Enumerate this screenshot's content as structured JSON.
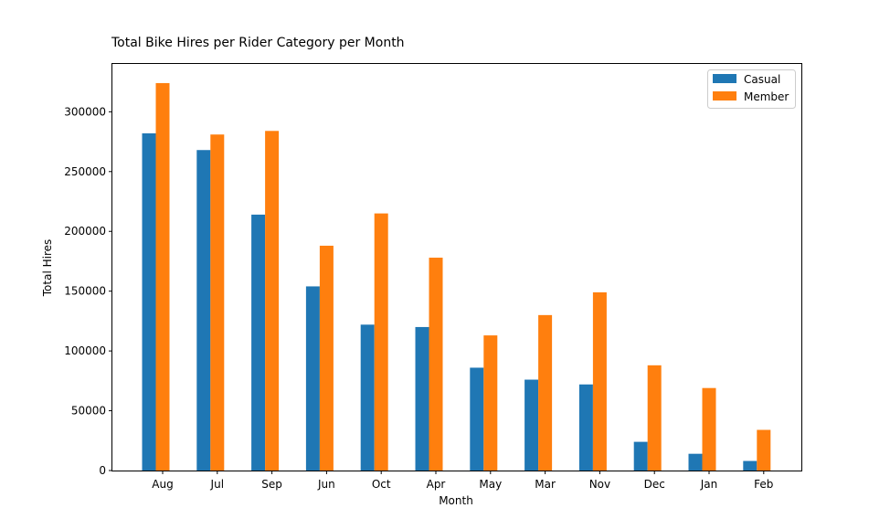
{
  "chart_data": {
    "type": "bar",
    "title": "Total Bike Hires per Rider Category per Month",
    "xlabel": "Month",
    "ylabel": "Total Hires",
    "categories": [
      "Aug",
      "Jul",
      "Sep",
      "Jun",
      "Oct",
      "Apr",
      "May",
      "Mar",
      "Nov",
      "Dec",
      "Jan",
      "Feb"
    ],
    "series": [
      {
        "name": "Casual",
        "color": "#1f77b4",
        "values": [
          282000,
          268000,
          214000,
          154000,
          122000,
          120000,
          86000,
          76000,
          72000,
          24000,
          14000,
          8000
        ]
      },
      {
        "name": "Member",
        "color": "#ff7f0e",
        "values": [
          324000,
          281000,
          284000,
          188000,
          215000,
          178000,
          113000,
          130000,
          149000,
          88000,
          69000,
          34000
        ]
      }
    ],
    "ylim": [
      0,
      340000
    ],
    "yticks": [
      "0",
      "50000",
      "100000",
      "150000",
      "200000",
      "250000",
      "300000"
    ],
    "grid": false,
    "legend_position": "top-right"
  }
}
